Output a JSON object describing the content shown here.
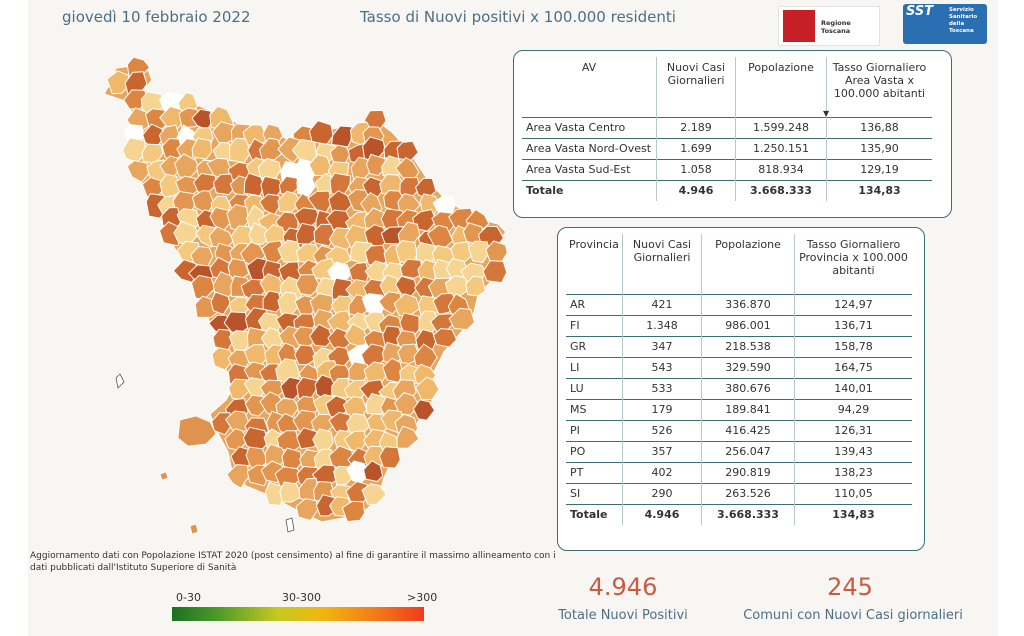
{
  "header": {
    "date": "giovedì 10 febbraio 2022",
    "title": "Tasso di Nuovi positivi x 100.000 residenti",
    "logo_regione": "Regione Toscana",
    "logo_sst_short": "SST",
    "logo_sst_long": "Servizio Sanitario della Toscana"
  },
  "colors": {
    "accent": "#c85b41",
    "border": "#3c6e74",
    "title": "#4d6f86"
  },
  "area_vasta_table": {
    "headers": [
      "AV",
      "Nuovi Casi Giornalieri",
      "Popolazione",
      "Tasso Giornaliero Area Vasta x 100.000 abitanti"
    ],
    "rows": [
      [
        "Area Vasta Centro",
        "2.189",
        "1.599.248",
        "136,88"
      ],
      [
        "Area Vasta Nord-Ovest",
        "1.699",
        "1.250.151",
        "135,90"
      ],
      [
        "Area Vasta Sud-Est",
        "1.058",
        "818.934",
        "129,19"
      ]
    ],
    "total": [
      "Totale",
      "4.946",
      "3.668.333",
      "134,83"
    ]
  },
  "provincia_table": {
    "headers": [
      "Provincia",
      "Nuovi Casi Giornalieri",
      "Popolazione",
      "Tasso Giornaliero Provincia x 100.000 abitanti"
    ],
    "rows": [
      [
        "AR",
        "421",
        "336.870",
        "124,97"
      ],
      [
        "FI",
        "1.348",
        "986.001",
        "136,71"
      ],
      [
        "GR",
        "347",
        "218.538",
        "158,78"
      ],
      [
        "LI",
        "543",
        "329.590",
        "164,75"
      ],
      [
        "LU",
        "533",
        "380.676",
        "140,01"
      ],
      [
        "MS",
        "179",
        "189.841",
        "94,29"
      ],
      [
        "PI",
        "526",
        "416.425",
        "126,31"
      ],
      [
        "PO",
        "357",
        "256.047",
        "139,43"
      ],
      [
        "PT",
        "402",
        "290.819",
        "138,23"
      ],
      [
        "SI",
        "290",
        "263.526",
        "110,05"
      ]
    ],
    "total": [
      "Totale",
      "4.946",
      "3.668.333",
      "134,83"
    ]
  },
  "note": "Aggiornamento dati con Popolazione ISTAT 2020 (post censimento) al fine di garantire il massimo allineamento con i dati pubblicati dall'Istituto Superiore di Sanità",
  "legend": {
    "labels": [
      "0-30",
      "30-300",
      ">300"
    ]
  },
  "kpi": {
    "total_value": "4.946",
    "total_label": "Totale Nuovi Positivi",
    "comuni_value": "245",
    "comuni_label": "Comuni con Nuovi Casi giornalieri"
  }
}
